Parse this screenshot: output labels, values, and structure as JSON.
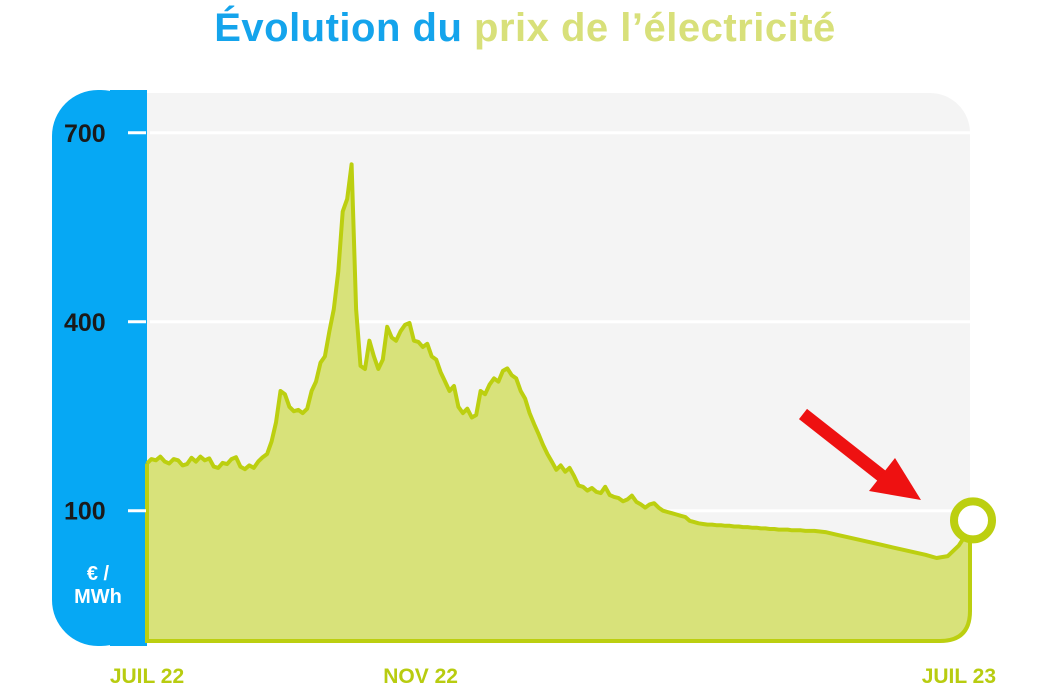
{
  "title": {
    "part1": "Évolution du",
    "part2": "prix de l’électricité"
  },
  "colors": {
    "title_blue": "#14a4ec",
    "title_green": "#d8e07a",
    "axis_band": "#06a8f4",
    "area_fill": "#d8e27a",
    "area_stroke": "#bccf10",
    "arrow": "#ee1111",
    "plot_bg": "#f4f4f4"
  },
  "chart_data": {
    "type": "area",
    "title": "Évolution du prix de l’électricité",
    "ylabel": "€ / MWh",
    "yticks": [
      100,
      400,
      700
    ],
    "ylim": [
      -110,
      760
    ],
    "x_tick_labels": [
      "JUIL 22",
      "NOV 22",
      "JUIL 23"
    ],
    "x_tick_positions_days": [
      0,
      123,
      365
    ],
    "xlim_days": [
      0,
      370
    ],
    "legend": "none",
    "grid": "horizontal",
    "annotation": "red arrow pointing down toward the latest value",
    "end_marker": "circle at last data point",
    "series": [
      {
        "x_days": [
          0,
          2,
          4,
          6,
          8,
          10,
          12,
          14,
          16,
          18,
          20,
          22,
          24,
          26,
          28,
          30,
          32,
          34,
          36,
          38,
          40,
          42,
          44,
          46,
          48,
          50,
          52,
          54,
          56,
          58,
          60,
          62,
          64,
          66,
          68,
          70,
          72,
          74,
          76,
          78,
          80,
          82,
          84,
          86,
          88,
          90,
          92,
          94,
          96,
          98,
          100,
          102,
          104,
          106,
          108,
          110,
          112,
          114,
          116,
          118,
          120,
          122,
          124,
          126,
          128,
          130,
          132,
          134,
          136,
          138,
          140,
          142,
          144,
          146,
          148,
          150,
          152,
          154,
          156,
          158,
          160,
          162,
          164,
          166,
          168,
          170,
          172,
          174,
          176,
          178,
          180,
          182,
          184,
          186,
          188,
          190,
          192,
          194,
          196,
          198,
          200,
          202,
          204,
          206,
          208,
          210,
          212,
          214,
          216,
          218,
          220,
          222,
          224,
          226,
          228,
          230,
          232,
          234,
          236,
          238,
          240,
          242,
          244,
          246,
          248,
          250,
          252,
          254,
          256,
          258,
          260,
          262,
          264,
          266,
          268,
          270,
          272,
          274,
          276,
          278,
          280,
          282,
          284,
          286,
          288,
          290,
          292,
          294,
          296,
          298,
          300,
          305,
          310,
          315,
          320,
          325,
          330,
          335,
          340,
          345,
          350,
          355,
          360,
          365,
          370
        ],
        "values": [
          175,
          182,
          180,
          186,
          178,
          175,
          182,
          180,
          172,
          174,
          184,
          178,
          186,
          180,
          183,
          170,
          168,
          176,
          174,
          182,
          185,
          170,
          166,
          172,
          168,
          178,
          185,
          190,
          210,
          240,
          290,
          285,
          265,
          258,
          260,
          255,
          262,
          290,
          305,
          335,
          345,
          385,
          420,
          480,
          575,
          595,
          650,
          420,
          330,
          325,
          370,
          345,
          325,
          340,
          392,
          375,
          370,
          385,
          395,
          398,
          370,
          368,
          360,
          365,
          345,
          340,
          320,
          305,
          290,
          298,
          265,
          255,
          262,
          248,
          252,
          290,
          285,
          300,
          310,
          305,
          322,
          326,
          315,
          310,
          290,
          278,
          255,
          238,
          222,
          205,
          190,
          178,
          165,
          172,
          162,
          168,
          155,
          140,
          138,
          132,
          136,
          130,
          128,
          138,
          125,
          122,
          120,
          115,
          118,
          124,
          114,
          110,
          105,
          110,
          112,
          105,
          100,
          98,
          96,
          94,
          92,
          90,
          84,
          82,
          80,
          79,
          78,
          78,
          77,
          77,
          76,
          76,
          75,
          75,
          74,
          74,
          73,
          73,
          72,
          72,
          71,
          71,
          70,
          70,
          70,
          69,
          69,
          69,
          68,
          68,
          68,
          66,
          62,
          58,
          54,
          50,
          46,
          42,
          38,
          34,
          30,
          25,
          28,
          45,
          72
        ]
      }
    ],
    "last_value": 72
  }
}
